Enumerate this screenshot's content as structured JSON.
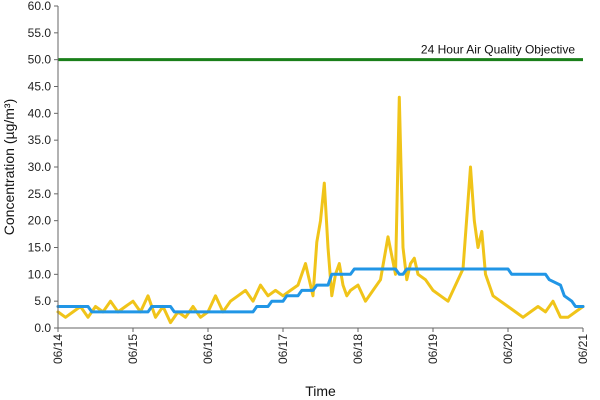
{
  "chart_data": {
    "type": "line",
    "xlabel": "Time",
    "ylabel": "Concentration (µg/m³)",
    "x_ticks": [
      "06/14",
      "06/15",
      "06/16",
      "06/17",
      "06/18",
      "06/19",
      "06/20",
      "06/21"
    ],
    "ylim": [
      0,
      60
    ],
    "y_ticks": [
      "0.0",
      "5.0",
      "10.0",
      "15.0",
      "20.0",
      "25.0",
      "30.0",
      "35.0",
      "40.0",
      "45.0",
      "50.0",
      "55.0",
      "60.0"
    ],
    "grid": false,
    "objective": {
      "label": "24 Hour Air Quality Objective",
      "value": 50,
      "color": "#1a7f1a"
    },
    "series": [
      {
        "color": "#f0c419",
        "x": [
          0,
          0.1,
          0.2,
          0.3,
          0.4,
          0.5,
          0.6,
          0.7,
          0.8,
          0.9,
          1.0,
          1.1,
          1.2,
          1.3,
          1.4,
          1.5,
          1.6,
          1.7,
          1.8,
          1.9,
          2.0,
          2.1,
          2.2,
          2.3,
          2.4,
          2.5,
          2.6,
          2.7,
          2.8,
          2.9,
          3.0,
          3.1,
          3.2,
          3.3,
          3.4,
          3.45,
          3.5,
          3.55,
          3.6,
          3.65,
          3.7,
          3.75,
          3.8,
          3.85,
          3.9,
          4.0,
          4.1,
          4.2,
          4.3,
          4.4,
          4.5,
          4.55,
          4.6,
          4.65,
          4.7,
          4.75,
          4.8,
          4.9,
          5.0,
          5.1,
          5.2,
          5.3,
          5.4,
          5.5,
          5.55,
          5.6,
          5.65,
          5.7,
          5.75,
          5.8,
          5.9,
          6.0,
          6.1,
          6.2,
          6.3,
          6.4,
          6.5,
          6.6,
          6.7,
          6.8,
          6.9,
          7.0
        ],
        "y": [
          3,
          2,
          3,
          4,
          2,
          4,
          3,
          5,
          3,
          4,
          5,
          3,
          6,
          2,
          4,
          1,
          3,
          2,
          4,
          2,
          3,
          6,
          3,
          5,
          6,
          7,
          5,
          8,
          6,
          7,
          6,
          7,
          8,
          12,
          6,
          16,
          20,
          27,
          15,
          6,
          10,
          12,
          8,
          6,
          7,
          8,
          5,
          7,
          9,
          17,
          10,
          43,
          15,
          9,
          12,
          13,
          10,
          9,
          7,
          6,
          5,
          8,
          11,
          30,
          20,
          15,
          18,
          10,
          8,
          6,
          5,
          4,
          3,
          2,
          3,
          4,
          3,
          5,
          2,
          2,
          3,
          4
        ]
      },
      {
        "color": "#2196e6",
        "x": [
          0,
          0.05,
          0.4,
          0.45,
          1.2,
          1.25,
          1.5,
          1.55,
          2.6,
          2.65,
          2.8,
          2.85,
          3.0,
          3.05,
          3.2,
          3.25,
          3.4,
          3.45,
          3.6,
          3.65,
          3.9,
          3.95,
          4.1,
          4.15,
          4.5,
          4.55,
          4.6,
          4.65,
          5.0,
          5.05,
          6.0,
          6.05,
          6.5,
          6.55,
          6.7,
          6.75,
          6.85,
          6.9,
          7.0
        ],
        "y": [
          4,
          4,
          4,
          3,
          3,
          4,
          4,
          3,
          3,
          4,
          4,
          5,
          5,
          6,
          6,
          7,
          7,
          8,
          8,
          10,
          10,
          11,
          11,
          11,
          11,
          10,
          10,
          11,
          11,
          11,
          11,
          10,
          10,
          9,
          8,
          6,
          5,
          4,
          4
        ]
      }
    ]
  }
}
